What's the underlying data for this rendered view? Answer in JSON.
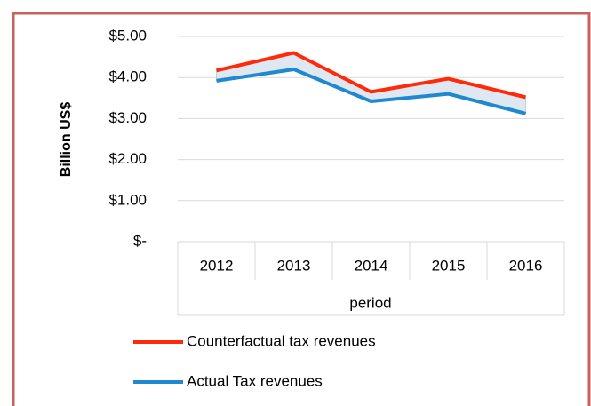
{
  "chart_data": {
    "type": "line",
    "categories": [
      "2012",
      "2013",
      "2014",
      "2015",
      "2016"
    ],
    "x_label": "period",
    "y_label": "Billion US$",
    "series": [
      {
        "name": "Counterfactual tax revenues",
        "color": "#ff2a0a",
        "values": [
          4.17,
          4.6,
          3.65,
          3.97,
          3.52
        ]
      },
      {
        "name": "Actual Tax revenues",
        "color": "#1e88d0",
        "values": [
          3.92,
          4.2,
          3.42,
          3.6,
          3.12
        ]
      }
    ],
    "ylim": [
      0,
      5
    ],
    "yticks": [
      {
        "value": 0,
        "label": "$-"
      },
      {
        "value": 1,
        "label": "$1.00"
      },
      {
        "value": 2,
        "label": "$2.00"
      },
      {
        "value": 3,
        "label": "$3.00"
      },
      {
        "value": 4,
        "label": "$4.00"
      },
      {
        "value": 5,
        "label": "$5.00"
      }
    ],
    "grid": true
  }
}
